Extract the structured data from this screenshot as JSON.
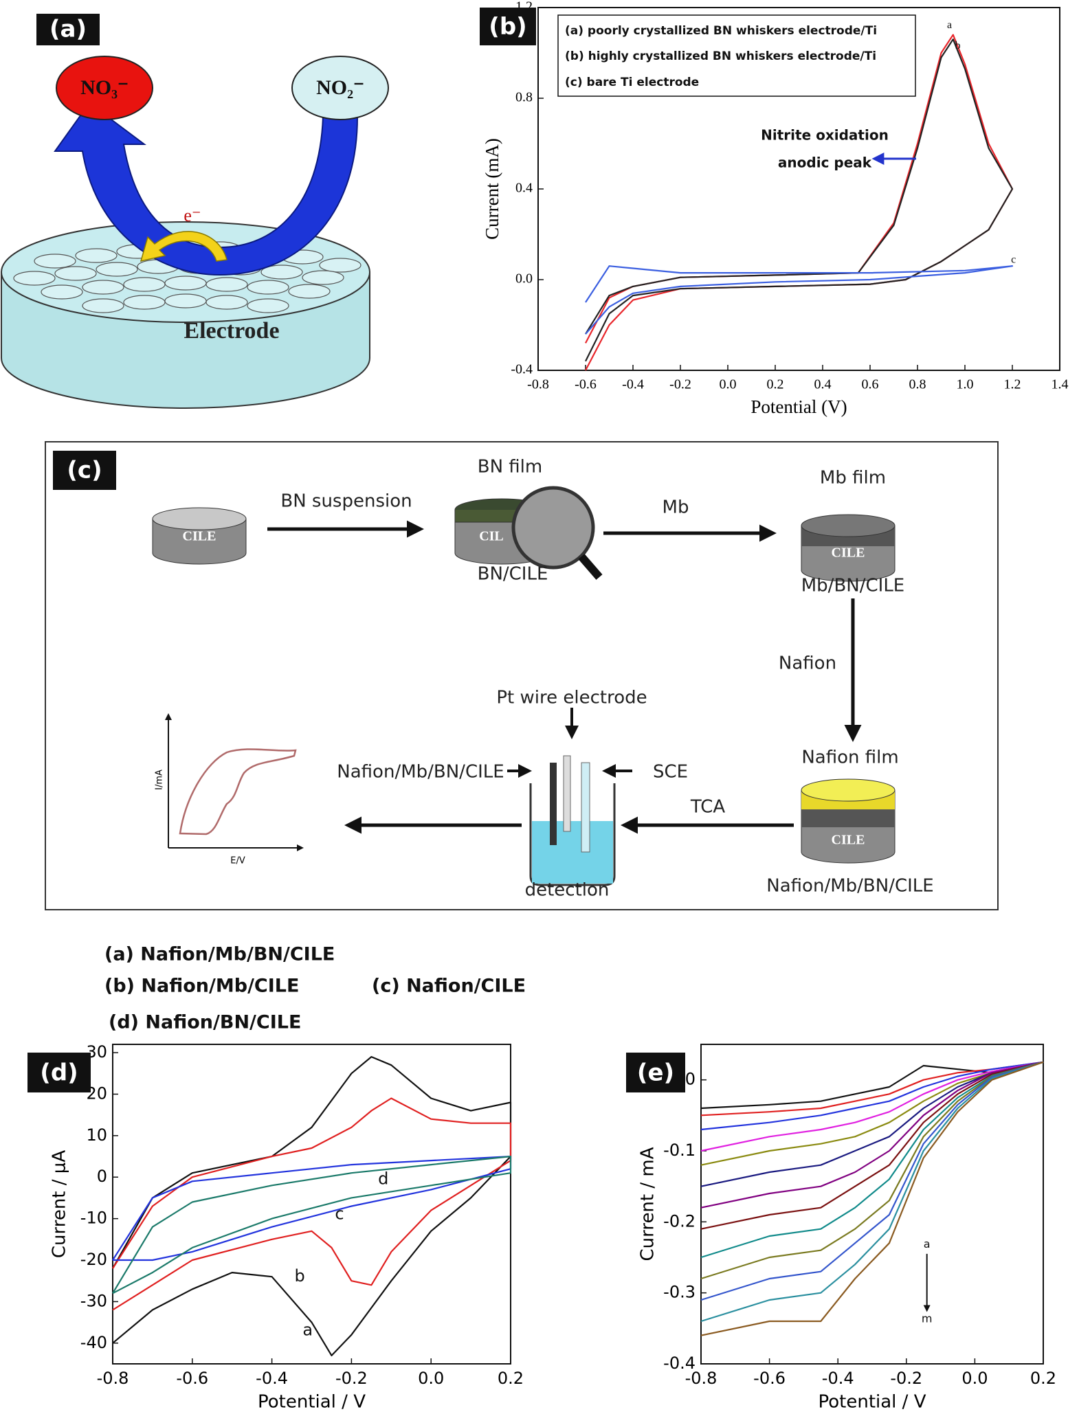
{
  "chart_data": [
    {
      "type": "line",
      "panel_label": "(b)",
      "xlabel": "Potential (V)",
      "ylabel": "Current (mA)",
      "xlim": [
        -0.8,
        1.4
      ],
      "ylim": [
        -0.4,
        1.2
      ],
      "xticks": [
        -0.8,
        -0.6,
        -0.4,
        -0.2,
        {
          "value": 0,
          "label": "0.0"
        },
        0.2,
        0.4,
        0.6,
        0.8,
        {
          "value": 1,
          "label": "1.0"
        },
        1.2,
        1.4
      ],
      "yticks": [
        -0.4,
        {
          "value": 0,
          "label": "0.0"
        },
        0.4,
        0.8,
        1.2
      ],
      "series": [
        {
          "name": "(a) poorly crystallized BN whiskers electrode/Ti",
          "color": "#e8262b",
          "x": [
            -0.6,
            -0.5,
            -0.4,
            -0.2,
            0.2,
            0.55,
            0.7,
            0.8,
            0.9,
            0.95,
            1.0,
            1.1,
            1.2,
            1.1,
            1.0,
            0.9,
            0.75,
            0.6,
            0.2,
            -0.2,
            -0.4,
            -0.5,
            -0.6
          ],
          "values": [
            -0.28,
            -0.08,
            -0.03,
            0.01,
            0.02,
            0.03,
            0.25,
            0.6,
            1.0,
            1.08,
            0.95,
            0.6,
            0.4,
            0.22,
            0.15,
            0.08,
            0.0,
            -0.02,
            -0.03,
            -0.04,
            -0.09,
            -0.2,
            -0.4
          ]
        },
        {
          "name": "(b) highly crystallized BN whiskers electrode/Ti",
          "color": "#222222",
          "x": [
            -0.6,
            -0.5,
            -0.4,
            -0.2,
            0.2,
            0.55,
            0.7,
            0.8,
            0.9,
            0.95,
            1.0,
            1.1,
            1.2,
            1.1,
            1.0,
            0.9,
            0.75,
            0.6,
            0.2,
            -0.2,
            -0.4,
            -0.5,
            -0.6
          ],
          "values": [
            -0.24,
            -0.07,
            -0.03,
            0.01,
            0.02,
            0.03,
            0.24,
            0.58,
            0.98,
            1.06,
            0.93,
            0.58,
            0.4,
            0.22,
            0.15,
            0.08,
            0.0,
            -0.02,
            -0.03,
            -0.04,
            -0.07,
            -0.15,
            -0.36
          ]
        },
        {
          "name": "(c) bare Ti electrode",
          "color": "#3a5ee0",
          "x": [
            -0.6,
            -0.5,
            -0.4,
            -0.2,
            0.2,
            0.6,
            1.0,
            1.2,
            1.0,
            0.6,
            0.2,
            -0.2,
            -0.4,
            -0.5,
            -0.6
          ],
          "values": [
            -0.1,
            0.06,
            0.05,
            0.03,
            0.03,
            0.03,
            0.04,
            0.06,
            0.03,
            0.0,
            -0.01,
            -0.03,
            -0.06,
            -0.12,
            -0.24
          ]
        }
      ],
      "annotations": [
        "a",
        "b",
        "c",
        "Nitrite oxidation",
        "anodic peak"
      ]
    },
    {
      "type": "line",
      "panel_label": "(d)",
      "xlabel": "Potential / V",
      "ylabel": "Current / μA",
      "xlim": [
        -0.8,
        0.2
      ],
      "ylim": [
        -45,
        32
      ],
      "xticks": [
        -0.8,
        -0.6,
        -0.4,
        -0.2,
        {
          "value": 0,
          "label": "0.0"
        },
        0.2
      ],
      "yticks": [
        -40,
        -30,
        -20,
        -10,
        0,
        10,
        20,
        30
      ],
      "series": [
        {
          "name": "(a) Nafion/Mb/BN/CILE",
          "color": "#111111",
          "x": [
            -0.8,
            -0.7,
            -0.6,
            -0.4,
            -0.3,
            -0.2,
            -0.15,
            -0.1,
            0.0,
            0.1,
            0.2,
            0.2,
            0.1,
            0.0,
            -0.1,
            -0.2,
            -0.25,
            -0.3,
            -0.4,
            -0.5,
            -0.6,
            -0.7,
            -0.8
          ],
          "values": [
            -22,
            -5,
            1,
            5,
            12,
            25,
            29,
            27,
            19,
            16,
            18,
            5,
            -5,
            -13,
            -25,
            -38,
            -43,
            -35,
            -24,
            -23,
            -27,
            -32,
            -40
          ]
        },
        {
          "name": "(b) Nafion/Mb/CILE",
          "color": "#e02020",
          "x": [
            -0.8,
            -0.7,
            -0.6,
            -0.4,
            -0.3,
            -0.2,
            -0.15,
            -0.1,
            0.0,
            0.1,
            0.2,
            0.2,
            0.1,
            0.0,
            -0.1,
            -0.15,
            -0.2,
            -0.25,
            -0.3,
            -0.4,
            -0.6,
            -0.7,
            -0.8
          ],
          "values": [
            -22,
            -7,
            0,
            5,
            7,
            12,
            16,
            19,
            14,
            13,
            13,
            4,
            -2,
            -8,
            -18,
            -26,
            -25,
            -17,
            -13,
            -15,
            -20,
            -26,
            -32
          ]
        },
        {
          "name": "(c) Nafion/CILE",
          "color": "#2233dd",
          "x": [
            -0.8,
            -0.7,
            -0.6,
            -0.4,
            -0.2,
            0.0,
            0.2,
            0.2,
            0.0,
            -0.2,
            -0.4,
            -0.6,
            -0.7,
            -0.8
          ],
          "values": [
            -20,
            -5,
            -1,
            1,
            3,
            4,
            5,
            2,
            -3,
            -7,
            -12,
            -18,
            -20,
            -20
          ]
        },
        {
          "name": "(d) Nafion/BN/CILE",
          "color": "#1b7a6a",
          "x": [
            -0.8,
            -0.7,
            -0.6,
            -0.4,
            -0.2,
            0.0,
            0.2,
            0.2,
            0.0,
            -0.2,
            -0.4,
            -0.6,
            -0.7,
            -0.8
          ],
          "values": [
            -28,
            -12,
            -6,
            -2,
            1,
            3,
            5,
            1,
            -2,
            -5,
            -10,
            -17,
            -23,
            -28
          ]
        }
      ],
      "annotations": [
        "a",
        "b",
        "c",
        "d"
      ]
    },
    {
      "type": "line",
      "panel_label": "(e)",
      "xlabel": "Potential / V",
      "ylabel": "Current / mA",
      "xlim": [
        -0.8,
        0.2
      ],
      "ylim": [
        -0.4,
        0.05
      ],
      "xticks": [
        -0.8,
        -0.6,
        -0.4,
        -0.2,
        {
          "value": 0,
          "label": "0.0"
        },
        0.2
      ],
      "yticks": [
        -0.4,
        -0.3,
        -0.2,
        -0.1,
        {
          "value": 0,
          "label": "0.0"
        }
      ],
      "series": [
        {
          "color": "#111111",
          "x": [
            -0.8,
            -0.6,
            -0.45,
            -0.35,
            -0.25,
            -0.15,
            -0.05,
            0.05,
            0.2
          ],
          "values": [
            -0.04,
            -0.035,
            -0.03,
            -0.02,
            -0.01,
            0.02,
            0.015,
            0.01,
            0.025
          ]
        },
        {
          "color": "#e02020",
          "x": [
            -0.8,
            -0.6,
            -0.45,
            -0.35,
            -0.25,
            -0.15,
            -0.05,
            0.05,
            0.2
          ],
          "values": [
            -0.05,
            -0.045,
            -0.04,
            -0.03,
            -0.02,
            0.0,
            0.01,
            0.015,
            0.025
          ]
        },
        {
          "color": "#2233dd",
          "x": [
            -0.8,
            -0.6,
            -0.45,
            -0.35,
            -0.25,
            -0.15,
            -0.05,
            0.05,
            0.2
          ],
          "values": [
            -0.07,
            -0.06,
            -0.05,
            -0.04,
            -0.03,
            -0.01,
            0.005,
            0.015,
            0.025
          ]
        },
        {
          "color": "#e020e0",
          "x": [
            -0.8,
            -0.6,
            -0.45,
            -0.35,
            -0.25,
            -0.15,
            -0.05,
            0.05,
            0.2
          ],
          "values": [
            -0.1,
            -0.08,
            -0.07,
            -0.06,
            -0.045,
            -0.02,
            0.0,
            0.012,
            0.025
          ]
        },
        {
          "color": "#8a8a10",
          "x": [
            -0.8,
            -0.6,
            -0.45,
            -0.35,
            -0.25,
            -0.15,
            -0.05,
            0.05,
            0.2
          ],
          "values": [
            -0.12,
            -0.1,
            -0.09,
            -0.08,
            -0.06,
            -0.03,
            -0.005,
            0.01,
            0.025
          ]
        },
        {
          "color": "#1a1a80",
          "x": [
            -0.8,
            -0.6,
            -0.45,
            -0.35,
            -0.25,
            -0.15,
            -0.05,
            0.05,
            0.2
          ],
          "values": [
            -0.15,
            -0.13,
            -0.12,
            -0.1,
            -0.08,
            -0.04,
            -0.01,
            0.01,
            0.025
          ]
        },
        {
          "color": "#800080",
          "x": [
            -0.8,
            -0.6,
            -0.45,
            -0.35,
            -0.25,
            -0.15,
            -0.05,
            0.05,
            0.2
          ],
          "values": [
            -0.18,
            -0.16,
            -0.15,
            -0.13,
            -0.1,
            -0.05,
            -0.015,
            0.01,
            0.025
          ]
        },
        {
          "color": "#7a1010",
          "x": [
            -0.8,
            -0.6,
            -0.45,
            -0.35,
            -0.25,
            -0.15,
            -0.05,
            0.05,
            0.2
          ],
          "values": [
            -0.21,
            -0.19,
            -0.18,
            -0.15,
            -0.12,
            -0.06,
            -0.02,
            0.008,
            0.025
          ]
        },
        {
          "color": "#108a8a",
          "x": [
            -0.8,
            -0.6,
            -0.45,
            -0.35,
            -0.25,
            -0.15,
            -0.05,
            0.05,
            0.2
          ],
          "values": [
            -0.25,
            -0.22,
            -0.21,
            -0.18,
            -0.14,
            -0.07,
            -0.025,
            0.006,
            0.025
          ]
        },
        {
          "color": "#7a7a20",
          "x": [
            -0.8,
            -0.6,
            -0.45,
            -0.35,
            -0.25,
            -0.15,
            -0.05,
            0.05,
            0.2
          ],
          "values": [
            -0.28,
            -0.25,
            -0.24,
            -0.21,
            -0.17,
            -0.08,
            -0.03,
            0.005,
            0.025
          ]
        },
        {
          "color": "#3355cc",
          "x": [
            -0.8,
            -0.6,
            -0.45,
            -0.35,
            -0.25,
            -0.15,
            -0.05,
            0.05,
            0.2
          ],
          "values": [
            -0.31,
            -0.28,
            -0.27,
            -0.23,
            -0.19,
            -0.09,
            -0.035,
            0.004,
            0.025
          ]
        },
        {
          "color": "#2a8f9f",
          "x": [
            -0.8,
            -0.6,
            -0.45,
            -0.35,
            -0.25,
            -0.15,
            -0.05,
            0.05,
            0.2
          ],
          "values": [
            -0.34,
            -0.31,
            -0.3,
            -0.26,
            -0.21,
            -0.1,
            -0.04,
            0.002,
            0.025
          ]
        },
        {
          "color": "#8a5a20",
          "x": [
            -0.8,
            -0.6,
            -0.45,
            -0.35,
            -0.25,
            -0.15,
            -0.05,
            0.05,
            0.2
          ],
          "values": [
            -0.36,
            -0.34,
            -0.34,
            -0.28,
            -0.23,
            -0.11,
            -0.045,
            0.0,
            0.025
          ]
        }
      ],
      "annotations": [
        "a",
        "m"
      ]
    }
  ],
  "diagram_a": {
    "panel_label": "(a)",
    "product": "NO₃⁻",
    "reactant": "NO₂⁻",
    "electron": "e⁻",
    "electrode": "Electrode"
  },
  "diagram_c": {
    "panel_label": "(c)",
    "cile_1": "CILE",
    "cile_2": "CIL",
    "cile_3": "CILE",
    "cile_4": "CILE",
    "step_1": "BN suspension",
    "bn_film": "BN film",
    "bn_cile": "BN/CILE",
    "step_2": "Mb",
    "mb_film": "Mb film",
    "mb_bn_cile": "Mb/BN/CILE",
    "step_3": "Nafion",
    "nafion_film": "Nafion film",
    "nafion_mb_bn_cile": "Nafion/Mb/BN/CILE",
    "step_4": "TCA",
    "pt_wire": "Pt wire electrode",
    "working": "Nafion/Mb/BN/CILE",
    "sce": "SCE",
    "detection": "detection",
    "y_axis": "I/mA",
    "x_axis": "E/V"
  }
}
